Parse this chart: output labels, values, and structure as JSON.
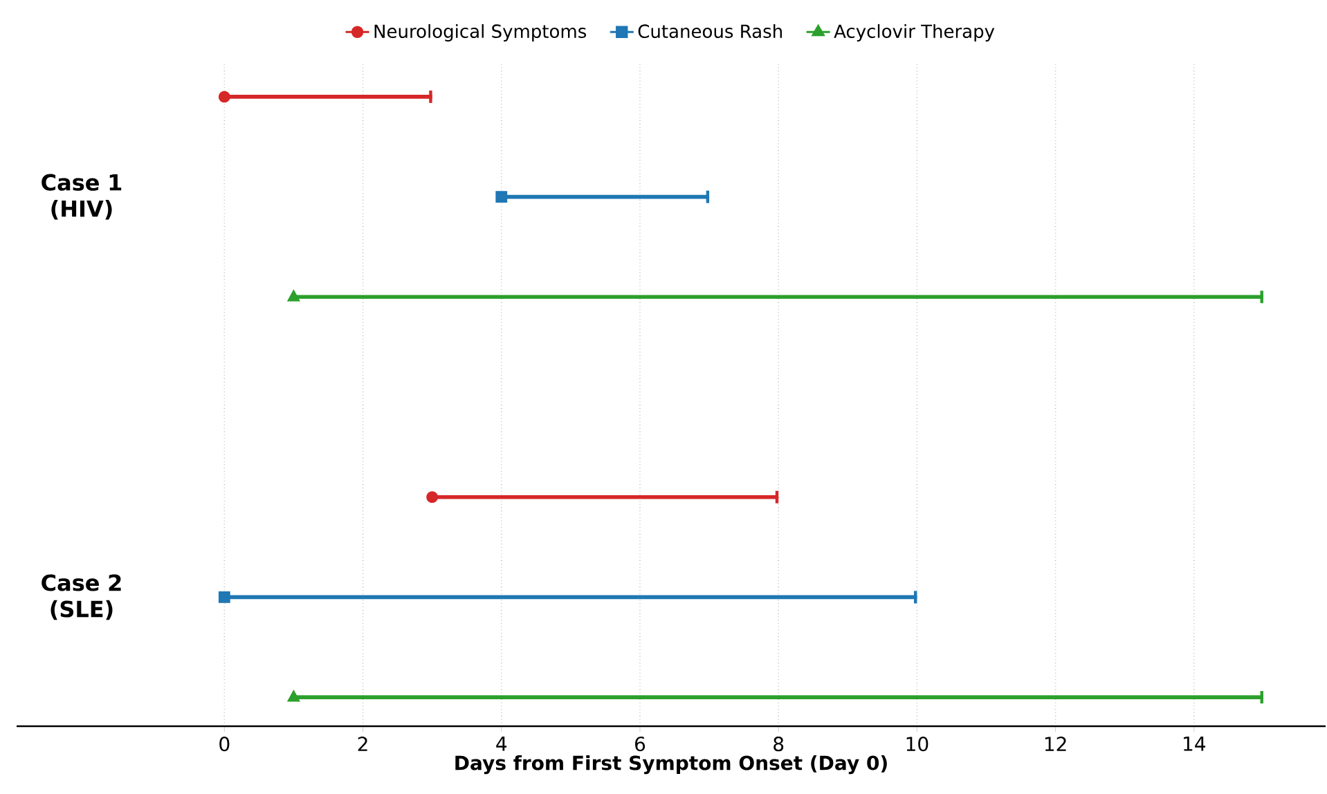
{
  "chart_data": {
    "type": "bar",
    "orientation": "horizontal",
    "categories": [
      "Case 1 (HIV)",
      "Case 2 (SLE)"
    ],
    "series": [
      {
        "name": "Neurological Symptoms",
        "color": "#d62728",
        "marker": "circle",
        "base": [
          0,
          3
        ],
        "values": [
          3,
          5
        ]
      },
      {
        "name": "Cutaneous Rash",
        "color": "#1f77b4",
        "marker": "square",
        "base": [
          4,
          0
        ],
        "values": [
          3,
          10
        ]
      },
      {
        "name": "Acyclovir Therapy",
        "color": "#2ca02c",
        "marker": "triangle",
        "base": [
          1,
          1
        ],
        "values": [
          14,
          14
        ]
      }
    ],
    "xlabel": "Days from First Symptom Onset (Day 0)",
    "xlim": [
      -3,
      15.9
    ],
    "xticks": [
      0,
      2,
      4,
      6,
      8,
      10,
      12,
      14
    ],
    "grid": "x",
    "legend": "top"
  }
}
